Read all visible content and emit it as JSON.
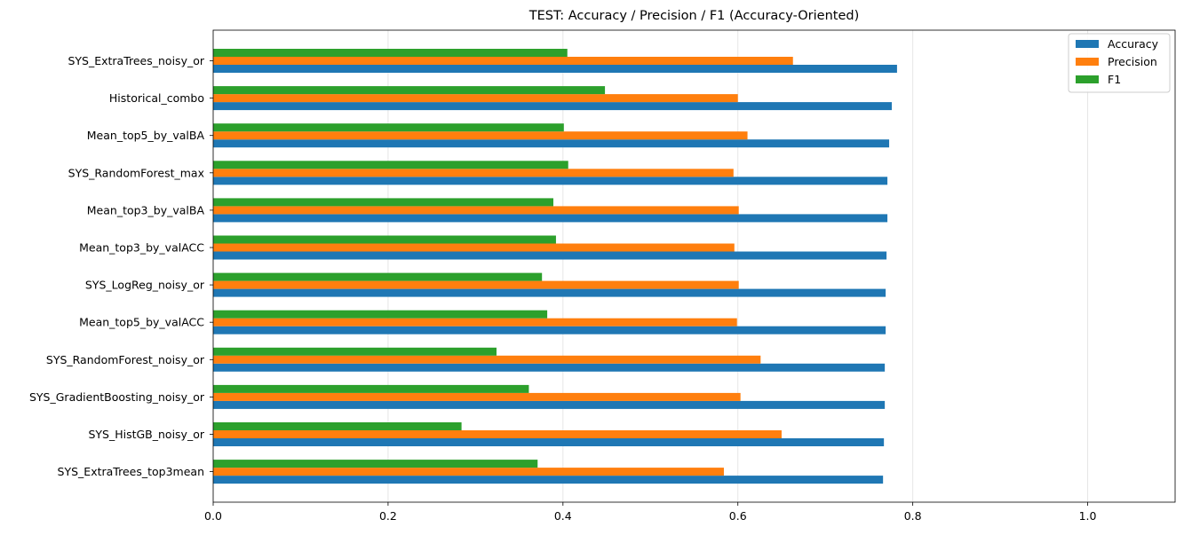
{
  "chart_data": {
    "type": "bar",
    "orientation": "horizontal",
    "title": "TEST: Accuracy / Precision / F1 (Accuracy-Oriented)",
    "xlabel": "",
    "ylabel": "",
    "xlim": [
      0,
      1.1
    ],
    "xticks": [
      "0.0",
      "0.2",
      "0.4",
      "0.6",
      "0.8",
      "1.0"
    ],
    "grid": "vertical",
    "legend_position": "top-right",
    "categories": [
      "SYS_ExtraTrees_noisy_or",
      "Historical_combo",
      "Mean_top5_by_valBA",
      "SYS_RandomForest_max",
      "Mean_top3_by_valBA",
      "Mean_top3_by_valACC",
      "SYS_LogReg_noisy_or",
      "Mean_top5_by_valACC",
      "SYS_RandomForest_noisy_or",
      "SYS_GradientBoosting_noisy_or",
      "SYS_HistGB_noisy_or",
      "SYS_ExtraTrees_top3mean"
    ],
    "series": [
      {
        "name": "Accuracy",
        "color": "#1f77b4",
        "values": [
          0.782,
          0.776,
          0.773,
          0.771,
          0.771,
          0.77,
          0.769,
          0.769,
          0.768,
          0.768,
          0.767,
          0.766
        ]
      },
      {
        "name": "Precision",
        "color": "#ff7f0e",
        "values": [
          0.663,
          0.6,
          0.611,
          0.595,
          0.601,
          0.596,
          0.601,
          0.599,
          0.626,
          0.603,
          0.65,
          0.584
        ]
      },
      {
        "name": "F1",
        "color": "#2ca02c",
        "values": [
          0.405,
          0.448,
          0.401,
          0.406,
          0.389,
          0.392,
          0.376,
          0.382,
          0.324,
          0.361,
          0.284,
          0.371
        ]
      }
    ]
  }
}
